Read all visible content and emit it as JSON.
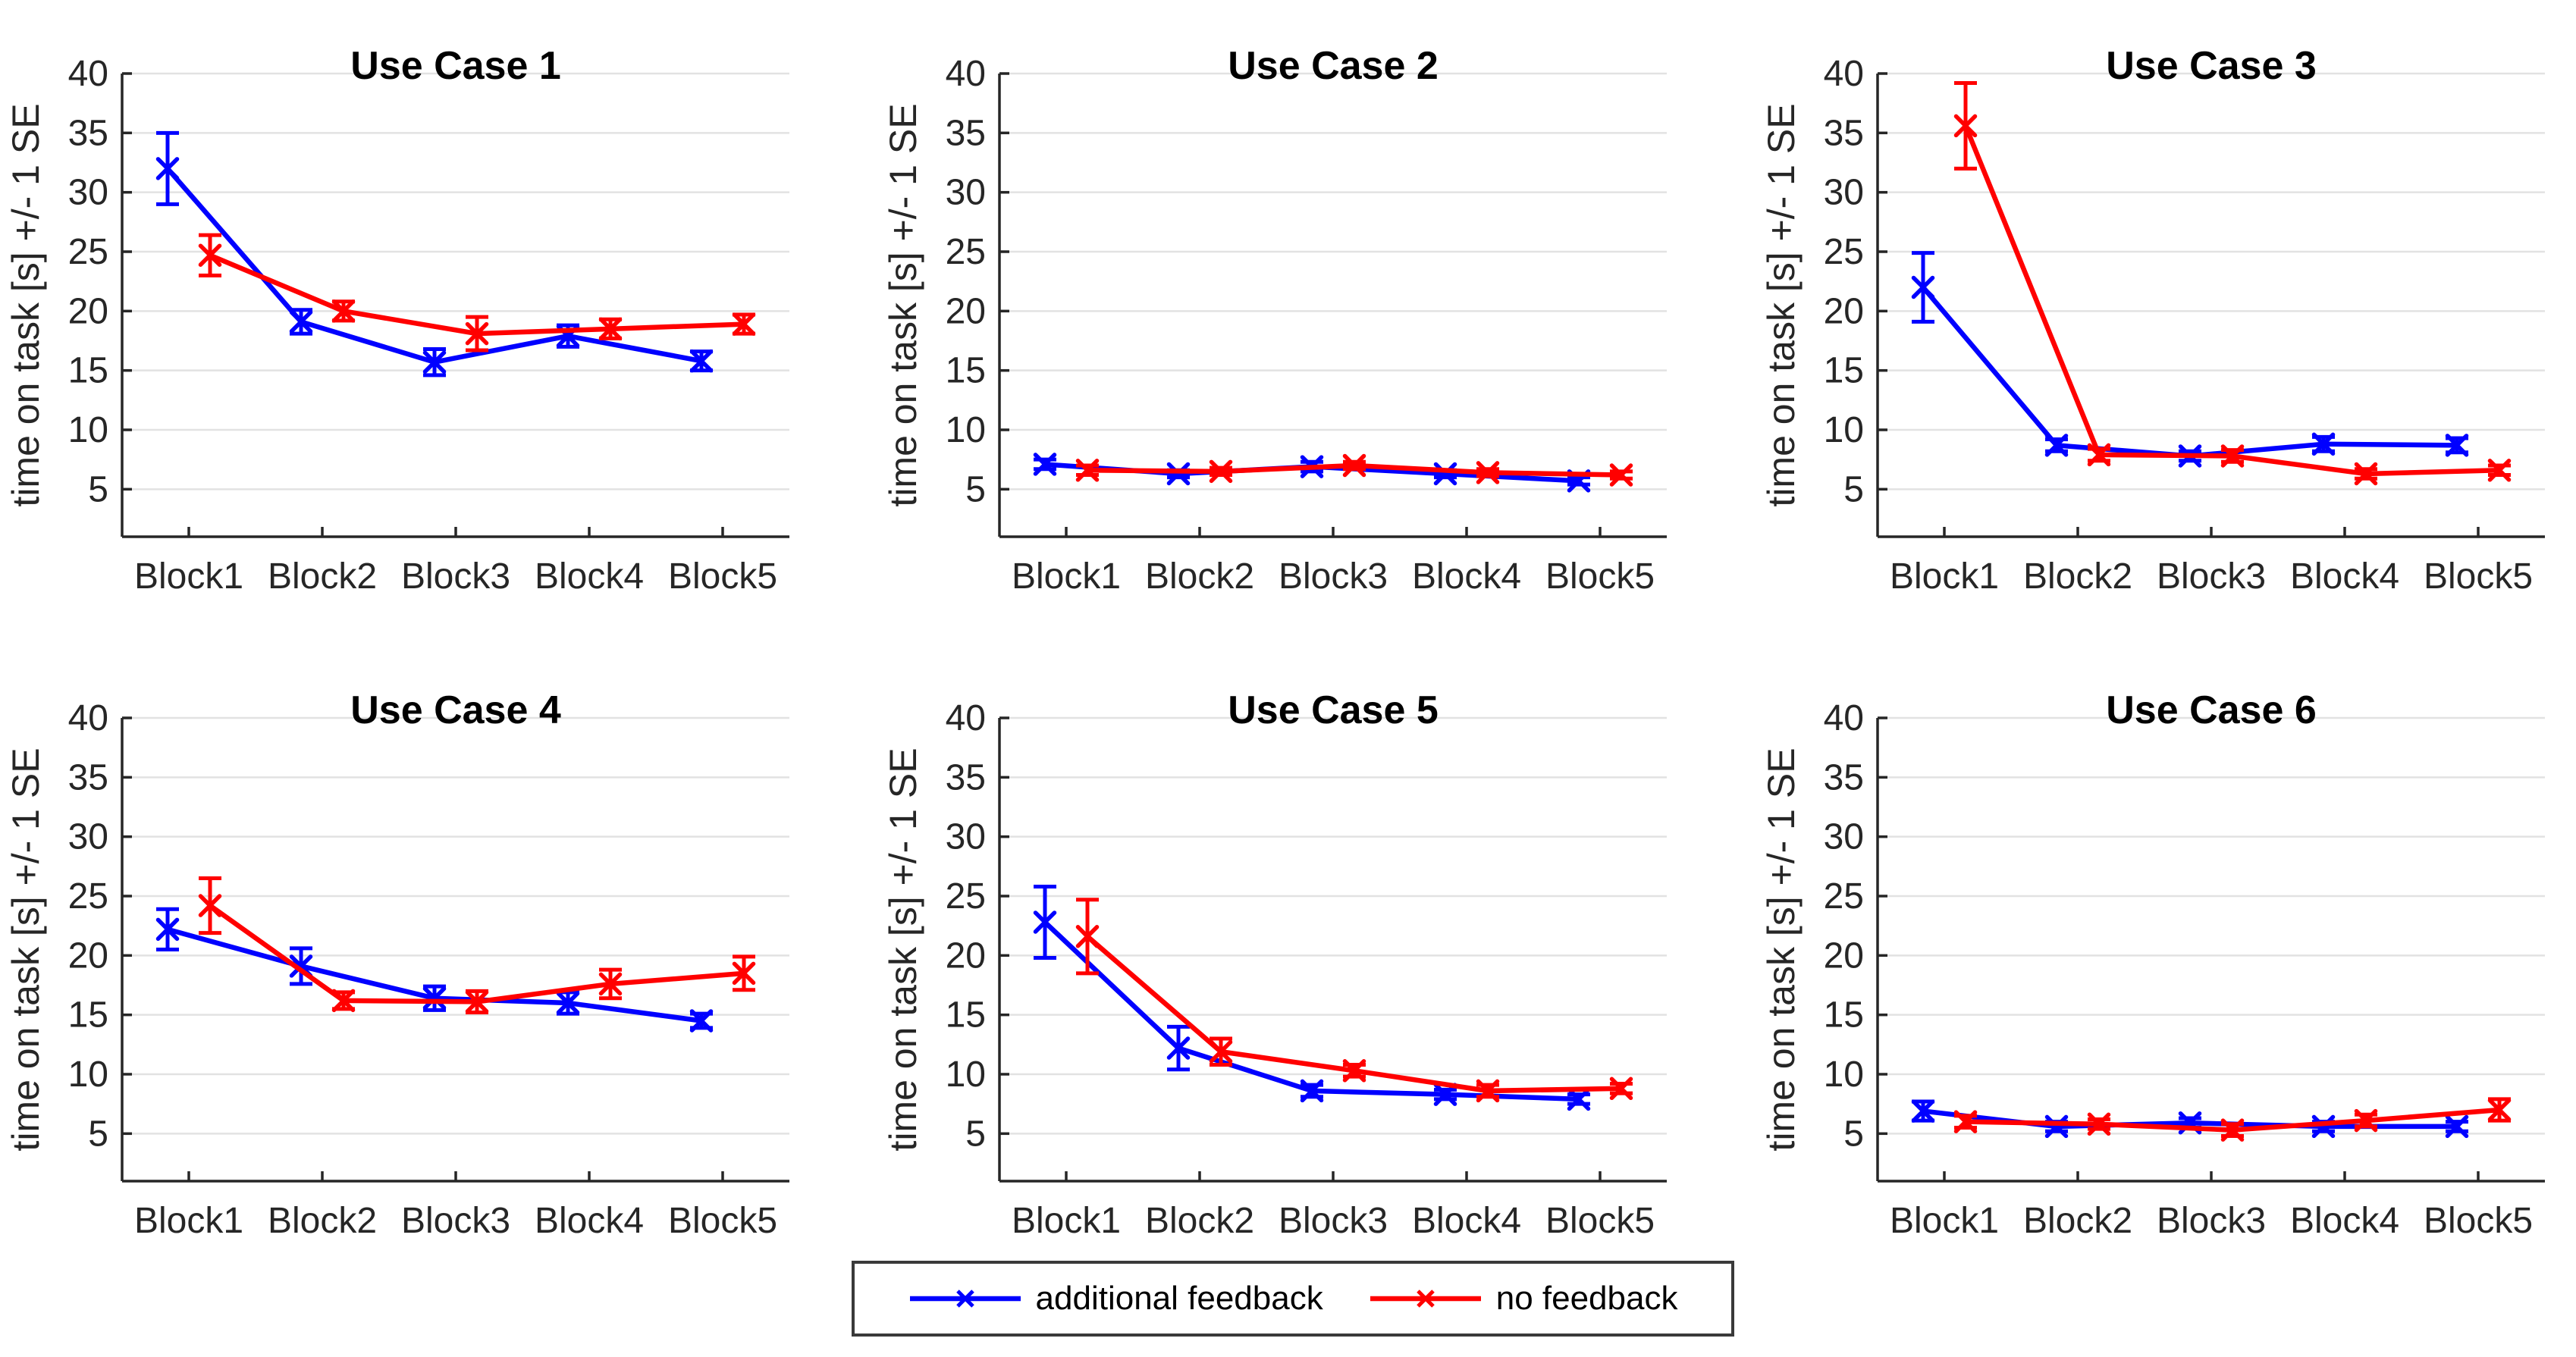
{
  "figure": {
    "background": "#ffffff"
  },
  "colors": {
    "axis": "#262626",
    "grid": "#e2e2e2",
    "tick_label": "#262626",
    "title": "#000000",
    "series_blue": "#0000ff",
    "series_red": "#ff0000"
  },
  "legend": {
    "position": "bottom",
    "items": [
      {
        "label": "additional feedback",
        "color": "#0000ff",
        "marker": "x"
      },
      {
        "label": "no feedback",
        "color": "#ff0000",
        "marker": "x"
      }
    ]
  },
  "chart_data": [
    {
      "type": "line",
      "title": "Use Case 1",
      "xlabel": "",
      "ylabel": "time on task [s] +/- 1 SE",
      "categories": [
        "Block1",
        "Block2",
        "Block3",
        "Block4",
        "Block5"
      ],
      "ylim": [
        1,
        40
      ],
      "yticks": [
        5,
        10,
        15,
        20,
        25,
        30,
        35,
        40
      ],
      "grid": "horizontal",
      "series": [
        {
          "name": "additional feedback",
          "color": "#0000ff",
          "marker": "x",
          "values": [
            32.0,
            19.1,
            15.7,
            17.9,
            15.8
          ],
          "se": [
            3.0,
            1.0,
            1.1,
            0.9,
            0.8
          ]
        },
        {
          "name": "no feedback",
          "color": "#ff0000",
          "marker": "x",
          "values": [
            24.7,
            20.0,
            18.1,
            18.5,
            18.9
          ],
          "se": [
            1.7,
            0.8,
            1.4,
            0.8,
            0.8
          ]
        }
      ]
    },
    {
      "type": "line",
      "title": "Use Case 2",
      "xlabel": "",
      "ylabel": "time on task [s] +/- 1 SE",
      "categories": [
        "Block1",
        "Block2",
        "Block3",
        "Block4",
        "Block5"
      ],
      "ylim": [
        1,
        40
      ],
      "yticks": [
        5,
        10,
        15,
        20,
        25,
        30,
        35,
        40
      ],
      "grid": "horizontal",
      "series": [
        {
          "name": "additional feedback",
          "color": "#0000ff",
          "marker": "x",
          "values": [
            7.1,
            6.3,
            6.9,
            6.3,
            5.7
          ],
          "se": [
            0.4,
            0.3,
            0.4,
            0.3,
            0.3
          ]
        },
        {
          "name": "no feedback",
          "color": "#ff0000",
          "marker": "x",
          "values": [
            6.6,
            6.5,
            7.0,
            6.4,
            6.2
          ],
          "se": [
            0.4,
            0.3,
            0.3,
            0.3,
            0.3
          ]
        }
      ]
    },
    {
      "type": "line",
      "title": "Use Case 3",
      "xlabel": "",
      "ylabel": "time on task [s] +/- 1 SE",
      "categories": [
        "Block1",
        "Block2",
        "Block3",
        "Block4",
        "Block5"
      ],
      "ylim": [
        1,
        40
      ],
      "yticks": [
        5,
        10,
        15,
        20,
        25,
        30,
        35,
        40
      ],
      "grid": "horizontal",
      "series": [
        {
          "name": "additional feedback",
          "color": "#0000ff",
          "marker": "x",
          "values": [
            22.0,
            8.7,
            7.8,
            8.8,
            8.7
          ],
          "se": [
            2.9,
            0.5,
            0.4,
            0.6,
            0.6
          ]
        },
        {
          "name": "no feedback",
          "color": "#ff0000",
          "marker": "x",
          "values": [
            35.6,
            7.9,
            7.8,
            6.3,
            6.6
          ],
          "se": [
            3.6,
            0.5,
            0.5,
            0.4,
            0.4
          ]
        }
      ]
    },
    {
      "type": "line",
      "title": "Use Case 4",
      "xlabel": "",
      "ylabel": "time on task [s] +/- 1 SE",
      "categories": [
        "Block1",
        "Block2",
        "Block3",
        "Block4",
        "Block5"
      ],
      "ylim": [
        1,
        40
      ],
      "yticks": [
        5,
        10,
        15,
        20,
        25,
        30,
        35,
        40
      ],
      "grid": "horizontal",
      "series": [
        {
          "name": "additional feedback",
          "color": "#0000ff",
          "marker": "x",
          "values": [
            22.2,
            19.1,
            16.4,
            16.0,
            14.5
          ],
          "se": [
            1.7,
            1.5,
            1.0,
            0.9,
            0.6
          ]
        },
        {
          "name": "no feedback",
          "color": "#ff0000",
          "marker": "x",
          "values": [
            24.2,
            16.2,
            16.1,
            17.6,
            18.5
          ],
          "se": [
            2.3,
            0.7,
            0.9,
            1.2,
            1.4
          ]
        }
      ]
    },
    {
      "type": "line",
      "title": "Use Case 5",
      "xlabel": "",
      "ylabel": "time on task [s] +/- 1 SE",
      "categories": [
        "Block1",
        "Block2",
        "Block3",
        "Block4",
        "Block5"
      ],
      "ylim": [
        1,
        40
      ],
      "yticks": [
        5,
        10,
        15,
        20,
        25,
        30,
        35,
        40
      ],
      "grid": "horizontal",
      "series": [
        {
          "name": "additional feedback",
          "color": "#0000ff",
          "marker": "x",
          "values": [
            22.8,
            12.2,
            8.6,
            8.3,
            7.9
          ],
          "se": [
            3.0,
            1.8,
            0.5,
            0.4,
            0.4
          ]
        },
        {
          "name": "no feedback",
          "color": "#ff0000",
          "marker": "x",
          "values": [
            21.6,
            11.9,
            10.3,
            8.6,
            8.8
          ],
          "se": [
            3.1,
            1.1,
            0.5,
            0.5,
            0.4
          ]
        }
      ]
    },
    {
      "type": "line",
      "title": "Use Case 6",
      "xlabel": "",
      "ylabel": "time on task [s] +/- 1 SE",
      "categories": [
        "Block1",
        "Block2",
        "Block3",
        "Block4",
        "Block5"
      ],
      "ylim": [
        1,
        40
      ],
      "yticks": [
        5,
        10,
        15,
        20,
        25,
        30,
        35,
        40
      ],
      "grid": "horizontal",
      "series": [
        {
          "name": "additional feedback",
          "color": "#0000ff",
          "marker": "x",
          "values": [
            6.9,
            5.6,
            5.9,
            5.6,
            5.6
          ],
          "se": [
            0.8,
            0.4,
            0.4,
            0.4,
            0.4
          ]
        },
        {
          "name": "no feedback",
          "color": "#ff0000",
          "marker": "x",
          "values": [
            6.0,
            5.8,
            5.3,
            6.1,
            7.0
          ],
          "se": [
            0.5,
            0.4,
            0.5,
            0.5,
            0.9
          ]
        }
      ]
    }
  ]
}
